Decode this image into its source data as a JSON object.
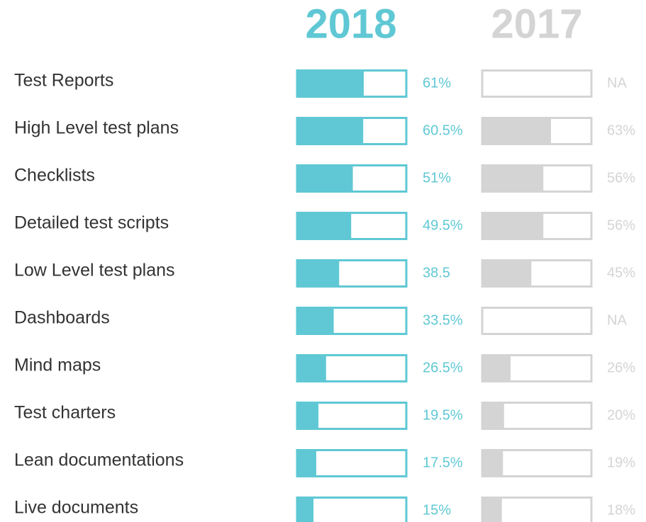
{
  "chart_data": {
    "type": "bar",
    "orientation": "horizontal",
    "categories": [
      "Test Reports",
      "High Level test plans",
      "Checklists",
      "Detailed test scripts",
      "Low Level test plans",
      "Dashboards",
      "Mind maps",
      "Test charters",
      "Lean documentations",
      "Live documents"
    ],
    "series": [
      {
        "name": "2018",
        "color": "#5fc8d4",
        "values": [
          61,
          60.5,
          51,
          49.5,
          38.5,
          33.5,
          26.5,
          19.5,
          17.5,
          15
        ],
        "value_labels": [
          "61%",
          "60.5%",
          "51%",
          "49.5%",
          "38.5",
          "33.5%",
          "26.5%",
          "19.5%",
          "17.5%",
          "15%"
        ]
      },
      {
        "name": "2017",
        "color": "#d4d4d4",
        "values": [
          null,
          63,
          56,
          56,
          45,
          null,
          26,
          20,
          19,
          18
        ],
        "value_labels": [
          "NA",
          "63%",
          "56%",
          "56%",
          "45%",
          "NA",
          "26%",
          "20%",
          "19%",
          "18%"
        ]
      }
    ],
    "xlim": [
      0,
      100
    ]
  }
}
